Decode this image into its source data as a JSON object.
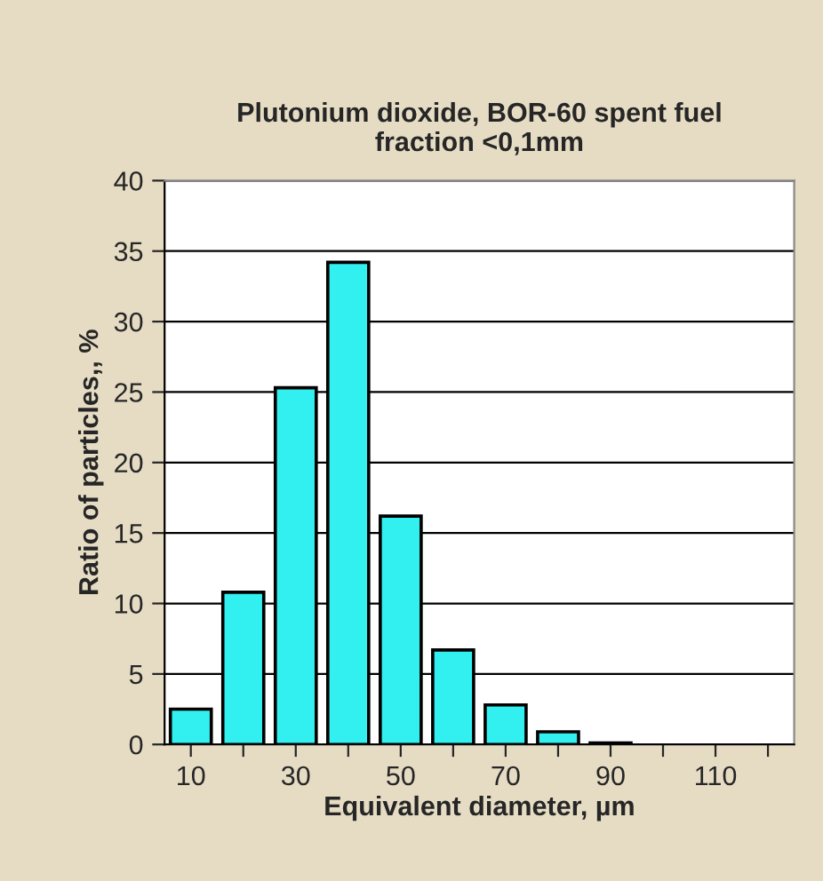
{
  "chart_data": {
    "type": "bar",
    "title": "Plutonium dioxide, BOR-60 spent fuel\nfraction <0,1mm",
    "xlabel": "Equivalent diameter, µm",
    "ylabel": "Ratio of particles,, %",
    "categories": [
      "10",
      null,
      "30",
      null,
      "50",
      null,
      "70",
      null,
      "90",
      null,
      "110",
      null
    ],
    "values": [
      2.5,
      10.8,
      25.3,
      34.2,
      16.2,
      6.7,
      2.8,
      0.9,
      0.1,
      null,
      null,
      null
    ],
    "color": "#33f0f0",
    "ylim": [
      0,
      40
    ],
    "yticks": [
      0,
      5,
      10,
      15,
      20,
      25,
      30,
      35,
      40
    ],
    "grid": "y"
  }
}
